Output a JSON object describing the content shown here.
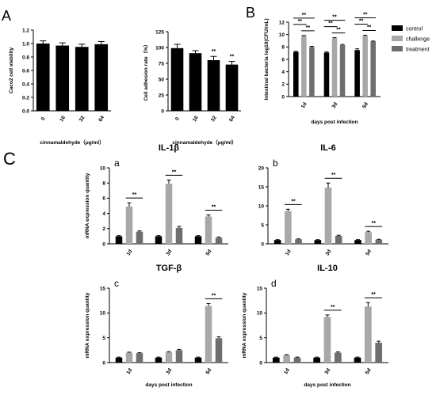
{
  "labels": {
    "A": "A",
    "B": "B",
    "C": "C"
  },
  "colors": {
    "control": "#000000",
    "challenge": "#a8a8a8",
    "treatment": "#6e6e6e",
    "single": "#000000"
  },
  "chart_data": [
    {
      "id": "A1",
      "type": "bar",
      "categories": [
        "0",
        "16",
        "32",
        "64"
      ],
      "values": [
        1.0,
        0.97,
        0.95,
        0.99
      ],
      "errors": [
        0.04,
        0.04,
        0.04,
        0.04
      ],
      "ylabel": "Caco2 cell viability",
      "xlabel": "cinnamaldehyde（μg/ml）",
      "ylim": [
        0,
        1.2
      ],
      "yticks": [
        "0.0",
        "0.2",
        "0.4",
        "0.6",
        "0.8",
        "1.0",
        "1.2"
      ],
      "sig": [
        "",
        "",
        "",
        ""
      ]
    },
    {
      "id": "A2",
      "type": "bar",
      "categories": [
        "0",
        "16",
        "32",
        "64"
      ],
      "values": [
        99,
        91,
        80,
        73
      ],
      "errors": [
        6,
        4,
        6,
        5
      ],
      "ylabel": "Cell adhesion rate（%）",
      "xlabel": "cinnamaldehyde（μg/ml）",
      "ylim": [
        0,
        125
      ],
      "yticks": [
        "0",
        "25",
        "50",
        "75",
        "100",
        "125"
      ],
      "sig": [
        "",
        "",
        "**",
        "**"
      ]
    },
    {
      "id": "B",
      "type": "bar",
      "categories": [
        "1d",
        "3d",
        "5d"
      ],
      "series": [
        {
          "name": "control",
          "values": [
            7.2,
            7.1,
            7.5
          ],
          "errors": [
            0.1,
            0.1,
            0.2
          ]
        },
        {
          "name": "challenge",
          "values": [
            9.8,
            9.4,
            9.8
          ],
          "errors": [
            0.05,
            0.1,
            0.1
          ]
        },
        {
          "name": "treatment",
          "values": [
            8.0,
            8.3,
            8.9
          ],
          "errors": [
            0.1,
            0.1,
            0.05
          ]
        }
      ],
      "ylabel": "Intestinal bacteria log10(CFU/mL)",
      "xlabel": "days post infection",
      "ylim": [
        0,
        12
      ],
      "yticks": [
        "0",
        "2",
        "4",
        "6",
        "8",
        "10",
        "12"
      ],
      "legend": "right",
      "sig_label": "**"
    },
    {
      "id": "Ca",
      "sub": "a",
      "title": "IL-1β",
      "type": "bar",
      "categories": [
        "1d",
        "3d",
        "5d"
      ],
      "series": [
        {
          "name": "control",
          "values": [
            1.0,
            1.0,
            1.0
          ],
          "errors": [
            0.08,
            0.08,
            0.08
          ]
        },
        {
          "name": "challenge",
          "values": [
            4.9,
            7.9,
            3.6
          ],
          "errors": [
            0.5,
            0.5,
            0.2
          ]
        },
        {
          "name": "treatment",
          "values": [
            1.6,
            2.1,
            0.8
          ],
          "errors": [
            0.1,
            0.2,
            0.1
          ]
        }
      ],
      "ylabel": "mRNA expression quantity",
      "xlabel": "",
      "ylim": [
        0,
        10
      ],
      "yticks": [
        "0",
        "2",
        "4",
        "6",
        "8",
        "10"
      ],
      "sig_label": "**"
    },
    {
      "id": "Cb",
      "sub": "b",
      "title": "IL-6",
      "type": "bar",
      "categories": [
        "1d",
        "3d",
        "5d"
      ],
      "series": [
        {
          "name": "control",
          "values": [
            1.0,
            1.0,
            1.0
          ],
          "errors": [
            0.1,
            0.1,
            0.1
          ]
        },
        {
          "name": "challenge",
          "values": [
            8.6,
            14.8,
            3.1
          ],
          "errors": [
            0.5,
            1.2,
            0.2
          ]
        },
        {
          "name": "treatment",
          "values": [
            1.2,
            2.1,
            1.1
          ],
          "errors": [
            0.1,
            0.15,
            0.1
          ]
        }
      ],
      "ylabel": "",
      "xlabel": "",
      "ylim": [
        0,
        20
      ],
      "yticks": [
        "0",
        "5",
        "10",
        "15",
        "20"
      ],
      "sig_label": "**"
    },
    {
      "id": "Cc",
      "sub": "c",
      "title": "TGF-β",
      "type": "bar",
      "categories": [
        "1d",
        "3d",
        "5d"
      ],
      "series": [
        {
          "name": "control",
          "values": [
            1.0,
            1.0,
            1.0
          ],
          "errors": [
            0.1,
            0.1,
            0.1
          ]
        },
        {
          "name": "challenge",
          "values": [
            2.0,
            2.1,
            11.4
          ],
          "errors": [
            0.1,
            0.1,
            0.5
          ]
        },
        {
          "name": "treatment",
          "values": [
            1.9,
            2.5,
            4.9
          ],
          "errors": [
            0.1,
            0.15,
            0.3
          ]
        }
      ],
      "ylabel": "mRNA expression quantity",
      "xlabel": "days post infection",
      "ylim": [
        0,
        15
      ],
      "yticks": [
        "0",
        "5",
        "10",
        "15"
      ],
      "sig_label": "**"
    },
    {
      "id": "Cd",
      "sub": "d",
      "title": "IL-10",
      "type": "bar",
      "categories": [
        "1d",
        "3d",
        "5d"
      ],
      "series": [
        {
          "name": "control",
          "values": [
            1.0,
            1.0,
            1.0
          ],
          "errors": [
            0.1,
            0.1,
            0.1
          ]
        },
        {
          "name": "challenge",
          "values": [
            1.5,
            9.2,
            11.3
          ],
          "errors": [
            0.1,
            0.4,
            0.8
          ]
        },
        {
          "name": "treatment",
          "values": [
            1.0,
            2.0,
            4.0
          ],
          "errors": [
            0.1,
            0.15,
            0.3
          ]
        }
      ],
      "ylabel": "mRNA expression quantity",
      "xlabel": "days post infection",
      "ylim": [
        0,
        15
      ],
      "yticks": [
        "0",
        "5",
        "10",
        "15"
      ],
      "sig_label": "**"
    }
  ]
}
